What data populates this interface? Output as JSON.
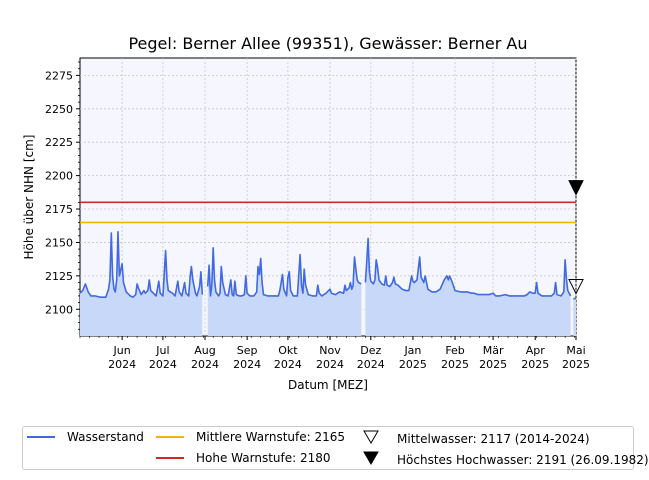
{
  "chart_data": {
    "type": "line",
    "title": "Pegel:  Berner Allee (99351), Gewässer:  Berner Au",
    "xlabel": "Datum [MEZ]",
    "ylabel": "Höhe über NHN [cm]",
    "ylim": [
      2080,
      2288
    ],
    "yticks": [
      2100,
      2125,
      2150,
      2175,
      2200,
      2225,
      2250,
      2275
    ],
    "xlim": [
      "2024-05-01",
      "2025-05-01"
    ],
    "xticks": [
      {
        "date": "2024-06-01",
        "label": [
          "Jun",
          "2024"
        ]
      },
      {
        "date": "2024-07-01",
        "label": [
          "Jul",
          "2024"
        ]
      },
      {
        "date": "2024-08-01",
        "label": [
          "Aug",
          "2024"
        ]
      },
      {
        "date": "2024-09-01",
        "label": [
          "Sep",
          "2024"
        ]
      },
      {
        "date": "2024-10-01",
        "label": [
          "Okt",
          "2024"
        ]
      },
      {
        "date": "2024-11-01",
        "label": [
          "Nov",
          "2024"
        ]
      },
      {
        "date": "2024-12-01",
        "label": [
          "Dez",
          "2024"
        ]
      },
      {
        "date": "2025-01-01",
        "label": [
          "Jan",
          "2025"
        ]
      },
      {
        "date": "2025-02-01",
        "label": [
          "Feb",
          "2025"
        ]
      },
      {
        "date": "2025-03-01",
        "label": [
          "Mär",
          "2025"
        ]
      },
      {
        "date": "2025-04-01",
        "label": [
          "Apr",
          "2025"
        ]
      },
      {
        "date": "2025-05-01",
        "label": [
          "Mai",
          "2025"
        ]
      }
    ],
    "grid": true,
    "legend_position": "bottom",
    "colors": {
      "water": "#4169e1",
      "fill": "#c8d8f8",
      "mean_warn": "#f5b400",
      "high_warn": "#d62728",
      "plot_bg": "#f6f7fe"
    },
    "hlines": [
      {
        "name": "Mittlere Warnstufe: 2165",
        "y": 2165,
        "color": "#f5b400"
      },
      {
        "name": "Hohe Warnstufe: 2180",
        "y": 2180,
        "color": "#d62728"
      }
    ],
    "markers": [
      {
        "name": "Mittelwasser: 2117 (2014-2024)",
        "y": 2117,
        "style": "open-triangle-down"
      },
      {
        "name": "Höchstes Hochwasser: 2191 (26.09.1982)",
        "y": 2191,
        "style": "filled-triangle-down"
      }
    ],
    "series": [
      {
        "name": "Wasserstand",
        "segments": [
          [
            [
              "2024-05-01",
              2112
            ],
            [
              "2024-05-03",
              2114
            ],
            [
              "2024-05-05",
              2119
            ],
            [
              "2024-05-07",
              2113
            ],
            [
              "2024-05-09",
              2110
            ],
            [
              "2024-05-12",
              2110
            ],
            [
              "2024-05-16",
              2109
            ],
            [
              "2024-05-20",
              2109
            ],
            [
              "2024-05-22",
              2115
            ],
            [
              "2024-05-23",
              2122
            ],
            [
              "2024-05-24",
              2157
            ],
            [
              "2024-05-25",
              2125
            ],
            [
              "2024-05-26",
              2115
            ],
            [
              "2024-05-27",
              2113
            ],
            [
              "2024-05-28",
              2122
            ],
            [
              "2024-05-29",
              2158
            ],
            [
              "2024-05-30",
              2125
            ],
            [
              "2024-06-01",
              2134
            ],
            [
              "2024-06-02",
              2120
            ],
            [
              "2024-06-04",
              2113
            ],
            [
              "2024-06-07",
              2110
            ],
            [
              "2024-06-09",
              2109
            ],
            [
              "2024-06-11",
              2111
            ],
            [
              "2024-06-12",
              2119
            ],
            [
              "2024-06-13",
              2116
            ],
            [
              "2024-06-15",
              2111
            ],
            [
              "2024-06-17",
              2114
            ],
            [
              "2024-06-18",
              2112
            ],
            [
              "2024-06-20",
              2114
            ],
            [
              "2024-06-21",
              2122
            ],
            [
              "2024-06-22",
              2114
            ],
            [
              "2024-06-24",
              2112
            ],
            [
              "2024-06-26",
              2110
            ],
            [
              "2024-06-28",
              2121
            ],
            [
              "2024-06-29",
              2112
            ],
            [
              "2024-07-01",
              2110
            ],
            [
              "2024-07-02",
              2127
            ],
            [
              "2024-07-03",
              2144
            ],
            [
              "2024-07-04",
              2122
            ],
            [
              "2024-07-05",
              2114
            ],
            [
              "2024-07-08",
              2112
            ],
            [
              "2024-07-10",
              2110
            ],
            [
              "2024-07-12",
              2121
            ],
            [
              "2024-07-13",
              2113
            ],
            [
              "2024-07-15",
              2110
            ],
            [
              "2024-07-17",
              2120
            ],
            [
              "2024-07-18",
              2112
            ],
            [
              "2024-07-20",
              2110
            ],
            [
              "2024-07-21",
              2124
            ],
            [
              "2024-07-22",
              2132
            ],
            [
              "2024-07-23",
              2122
            ],
            [
              "2024-07-25",
              2112
            ],
            [
              "2024-07-26",
              2110
            ],
            [
              "2024-07-28",
              2117
            ],
            [
              "2024-07-29",
              2128
            ],
            [
              "2024-07-30",
              2111
            ]
          ],
          [
            [
              "2024-08-03",
              2117
            ],
            [
              "2024-08-04",
              2133
            ],
            [
              "2024-08-05",
              2110
            ],
            [
              "2024-08-06",
              2118
            ],
            [
              "2024-08-07",
              2146
            ],
            [
              "2024-08-08",
              2122
            ],
            [
              "2024-08-09",
              2113
            ],
            [
              "2024-08-11",
              2110
            ],
            [
              "2024-08-12",
              2112
            ],
            [
              "2024-08-13",
              2132
            ],
            [
              "2024-08-14",
              2120
            ],
            [
              "2024-08-16",
              2111
            ],
            [
              "2024-08-18",
              2110
            ],
            [
              "2024-08-20",
              2122
            ],
            [
              "2024-08-21",
              2111
            ],
            [
              "2024-08-22",
              2110
            ],
            [
              "2024-08-23",
              2121
            ],
            [
              "2024-08-24",
              2111
            ],
            [
              "2024-08-26",
              2110
            ],
            [
              "2024-08-28",
              2110
            ],
            [
              "2024-08-30",
              2111
            ],
            [
              "2024-08-31",
              2125
            ],
            [
              "2024-09-01",
              2112
            ],
            [
              "2024-09-03",
              2110
            ],
            [
              "2024-09-06",
              2110
            ],
            [
              "2024-09-08",
              2113
            ],
            [
              "2024-09-09",
              2132
            ],
            [
              "2024-09-10",
              2126
            ],
            [
              "2024-09-11",
              2138
            ],
            [
              "2024-09-12",
              2120
            ],
            [
              "2024-09-13",
              2111
            ],
            [
              "2024-09-16",
              2110
            ],
            [
              "2024-09-20",
              2110
            ],
            [
              "2024-09-24",
              2110
            ],
            [
              "2024-09-25",
              2114
            ],
            [
              "2024-09-27",
              2126
            ],
            [
              "2024-09-28",
              2115
            ],
            [
              "2024-09-30",
              2110
            ],
            [
              "2024-10-01",
              2124
            ],
            [
              "2024-10-02",
              2128
            ],
            [
              "2024-10-03",
              2114
            ],
            [
              "2024-10-05",
              2110
            ],
            [
              "2024-10-08",
              2110
            ],
            [
              "2024-10-10",
              2141
            ],
            [
              "2024-10-11",
              2118
            ],
            [
              "2024-10-12",
              2112
            ],
            [
              "2024-10-13",
              2130
            ],
            [
              "2024-10-14",
              2118
            ],
            [
              "2024-10-16",
              2111
            ],
            [
              "2024-10-19",
              2110
            ],
            [
              "2024-10-22",
              2110
            ],
            [
              "2024-10-23",
              2118
            ],
            [
              "2024-10-24",
              2112
            ],
            [
              "2024-10-26",
              2110
            ],
            [
              "2024-10-29",
              2112
            ],
            [
              "2024-11-01",
              2115
            ],
            [
              "2024-11-02",
              2112
            ],
            [
              "2024-11-05",
              2111
            ],
            [
              "2024-11-08",
              2113
            ],
            [
              "2024-11-11",
              2112
            ],
            [
              "2024-11-12",
              2118
            ],
            [
              "2024-11-13",
              2114
            ],
            [
              "2024-11-15",
              2116
            ],
            [
              "2024-11-16",
              2120
            ],
            [
              "2024-11-17",
              2115
            ],
            [
              "2024-11-18",
              2118
            ],
            [
              "2024-11-19",
              2139
            ],
            [
              "2024-11-20",
              2130
            ],
            [
              "2024-11-21",
              2122
            ],
            [
              "2024-11-22",
              2120
            ],
            [
              "2024-11-24",
              2119
            ]
          ],
          [
            [
              "2024-11-27",
              2120
            ],
            [
              "2024-11-28",
              2135
            ],
            [
              "2024-11-29",
              2153
            ],
            [
              "2024-11-30",
              2128
            ],
            [
              "2024-12-01",
              2121
            ],
            [
              "2024-12-03",
              2119
            ],
            [
              "2024-12-04",
              2122
            ],
            [
              "2024-12-05",
              2137
            ],
            [
              "2024-12-06",
              2131
            ],
            [
              "2024-12-07",
              2122
            ],
            [
              "2024-12-09",
              2119
            ],
            [
              "2024-12-11",
              2118
            ],
            [
              "2024-12-12",
              2125
            ],
            [
              "2024-12-13",
              2118
            ],
            [
              "2024-12-15",
              2117
            ],
            [
              "2024-12-17",
              2120
            ],
            [
              "2024-12-18",
              2124
            ],
            [
              "2024-12-19",
              2119
            ],
            [
              "2024-12-21",
              2118
            ],
            [
              "2024-12-24",
              2115
            ],
            [
              "2024-12-27",
              2114
            ],
            [
              "2024-12-29",
              2114
            ],
            [
              "2024-12-31",
              2125
            ],
            [
              "2025-01-01",
              2121
            ],
            [
              "2025-01-02",
              2120
            ],
            [
              "2025-01-04",
              2122
            ],
            [
              "2025-01-06",
              2139
            ],
            [
              "2025-01-07",
              2124
            ],
            [
              "2025-01-09",
              2120
            ],
            [
              "2025-01-10",
              2125
            ],
            [
              "2025-01-12",
              2115
            ],
            [
              "2025-01-15",
              2113
            ],
            [
              "2025-01-18",
              2113
            ],
            [
              "2025-01-21",
              2115
            ],
            [
              "2025-01-24",
              2122
            ],
            [
              "2025-01-26",
              2125
            ],
            [
              "2025-01-27",
              2122
            ],
            [
              "2025-01-28",
              2125
            ],
            [
              "2025-01-30",
              2120
            ],
            [
              "2025-02-01",
              2114
            ],
            [
              "2025-02-05",
              2113
            ],
            [
              "2025-02-10",
              2113
            ],
            [
              "2025-02-13",
              2112
            ],
            [
              "2025-02-15",
              2112
            ],
            [
              "2025-02-18",
              2111
            ],
            [
              "2025-02-22",
              2111
            ],
            [
              "2025-02-26",
              2111
            ],
            [
              "2025-03-01",
              2112
            ],
            [
              "2025-03-03",
              2110
            ],
            [
              "2025-03-06",
              2110
            ],
            [
              "2025-03-10",
              2111
            ],
            [
              "2025-03-13",
              2110
            ],
            [
              "2025-03-16",
              2110
            ],
            [
              "2025-03-20",
              2110
            ],
            [
              "2025-03-24",
              2110
            ],
            [
              "2025-03-26",
              2111
            ],
            [
              "2025-03-28",
              2113
            ],
            [
              "2025-03-30",
              2112
            ],
            [
              "2025-04-01",
              2112
            ],
            [
              "2025-04-02",
              2120
            ],
            [
              "2025-04-03",
              2112
            ],
            [
              "2025-04-06",
              2110
            ],
            [
              "2025-04-10",
              2110
            ],
            [
              "2025-04-13",
              2110
            ],
            [
              "2025-04-15",
              2112
            ],
            [
              "2025-04-16",
              2120
            ],
            [
              "2025-04-17",
              2111
            ],
            [
              "2025-04-20",
              2110
            ],
            [
              "2025-04-22",
              2113
            ],
            [
              "2025-04-23",
              2137
            ],
            [
              "2025-04-24",
              2122
            ],
            [
              "2025-04-25",
              2114
            ],
            [
              "2025-04-27",
              2110
            ]
          ],
          [
            [
              "2025-04-29",
              2108
            ],
            [
              "2025-05-01",
              2108
            ]
          ]
        ]
      }
    ]
  },
  "legend": {
    "water_level": "Wasserstand",
    "mean_warn": "Mittlere Warnstufe: 2165",
    "high_warn": "Hohe Warnstufe: 2180",
    "mean_water": "Mittelwasser: 2117 (2014-2024)",
    "highest_flood": "Höchstes Hochwasser: 2191 (26.09.1982)"
  }
}
